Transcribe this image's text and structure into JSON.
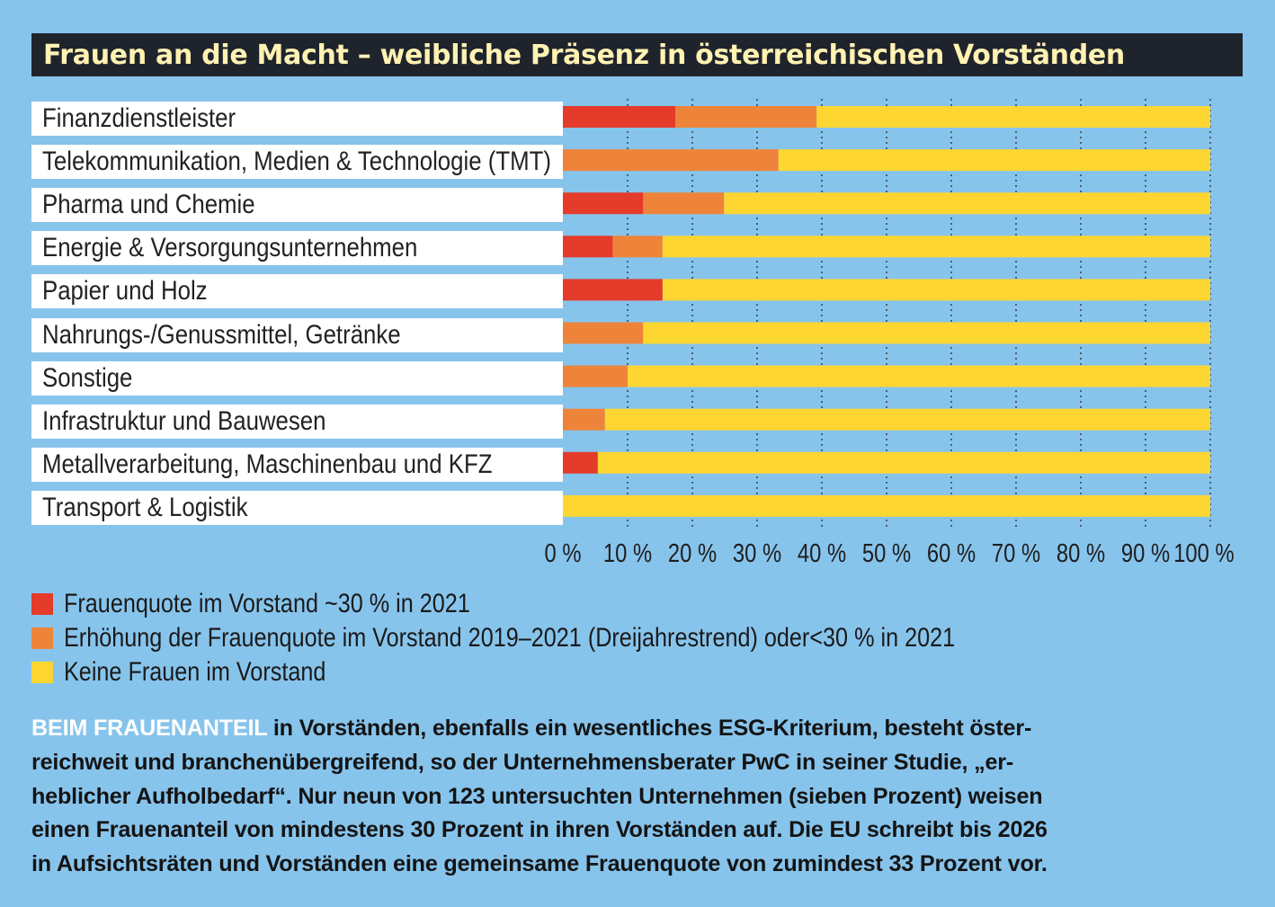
{
  "title": "Frauen an die Macht – weibliche Präsenz in österreichischen Vorständen",
  "chart_data": {
    "type": "bar",
    "orientation": "horizontal",
    "stacked": true,
    "title": "Frauen an die Macht – weibliche Präsenz in österreichischen Vorständen",
    "categories": [
      "Finanzdienstleister",
      "Telekommunikation, Medien & Technologie (TMT)",
      "Pharma und Chemie",
      "Energie & Versorgungsunternehmen",
      "Papier und Holz",
      "Nahrungs-/Genussmittel, Getränke",
      "Sonstige",
      "Infrastruktur und Bauwesen",
      "Metallverarbeitung, Maschinenbau und KFZ",
      "Transport & Logistik"
    ],
    "series": [
      {
        "name": "Frauenquote im Vorstand ~30 % in 2021",
        "color": "#e43b2b",
        "values": [
          17.4,
          0,
          12.4,
          7.7,
          15.4,
          0,
          0,
          0,
          5.4,
          0
        ]
      },
      {
        "name": "Erhöhung der Frauenquote im Vorstand 2019–2021 (Dreijahrestrend) oder<30 % in 2021",
        "color": "#ee843a",
        "values": [
          21.8,
          33.3,
          12.5,
          7.7,
          0,
          12.4,
          10.0,
          6.5,
          0,
          0
        ]
      },
      {
        "name": "Keine Frauen im Vorstand",
        "color": "#fed631",
        "values": [
          60.8,
          66.7,
          75.1,
          84.6,
          84.6,
          87.6,
          90.0,
          93.5,
          94.6,
          100
        ]
      }
    ],
    "xlim": [
      0,
      100
    ],
    "xticks": [
      0,
      10,
      20,
      30,
      40,
      50,
      60,
      70,
      80,
      90,
      100
    ],
    "tick_labels": [
      "0 %",
      "10 %",
      "20 %",
      "30 %",
      "40 %",
      "50 %",
      "60 %",
      "70 %",
      "80 %",
      "90 %",
      "100 %"
    ],
    "grid": "vertical-dotted"
  },
  "body": {
    "lead": "BEIM FRAUENANTEIL",
    "line1": " in Vorständen, ebenfalls ein wesentliches ESG-Kriterium, besteht öster-",
    "line2": "reichweit und branchenübergreifend, so der Unternehmensberater PwC in seiner Studie, „er-",
    "line3": "heblicher Aufholbedarf“. Nur neun von 123 untersuchten Unternehmen (sieben Prozent) weisen",
    "line4": "einen Frauenanteil von mindestens 30 Prozent in ihren Vorständen auf.  Die EU schreibt bis 2026",
    "line5": "in Aufsichtsräten und Vorständen eine gemeinsame Frauenquote von zumindest 33 Prozent vor."
  }
}
